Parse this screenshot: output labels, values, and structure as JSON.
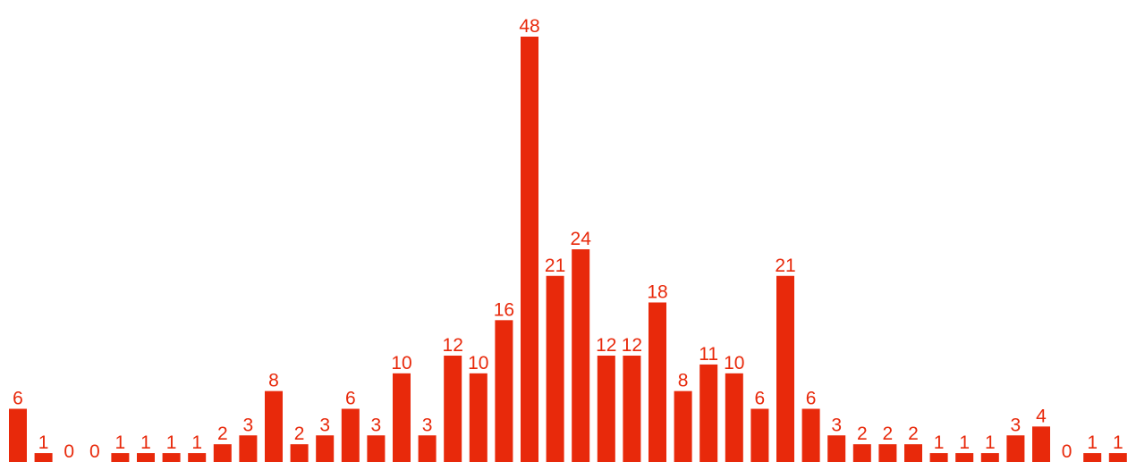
{
  "chart_data": {
    "type": "bar",
    "title": "",
    "xlabel": "",
    "ylabel": "",
    "values": [
      6,
      1,
      0,
      0,
      1,
      1,
      1,
      1,
      2,
      3,
      8,
      2,
      3,
      6,
      3,
      10,
      3,
      12,
      10,
      16,
      48,
      21,
      24,
      12,
      12,
      18,
      8,
      11,
      10,
      6,
      21,
      6,
      3,
      2,
      2,
      2,
      1,
      1,
      1,
      3,
      4,
      0,
      1,
      1
    ],
    "ylim": [
      0,
      48
    ],
    "grid": false,
    "legend": "none",
    "data_labels": true,
    "bar_color": "#e8290b",
    "label_color": "#e8290b"
  }
}
